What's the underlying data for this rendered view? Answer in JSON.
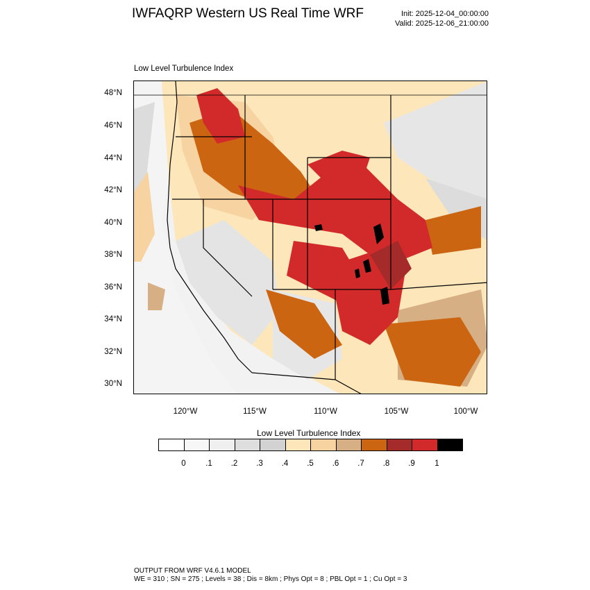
{
  "title": "IWFAQRP Western US Real Time WRF",
  "init": "Init: 2025-12-04_00:00:00",
  "valid": "Valid: 2025-12-06_21:00:00",
  "plot_label": "Low Level Turbulence Index",
  "lat_labels": [
    "48°N",
    "46°N",
    "44°N",
    "42°N",
    "40°N",
    "38°N",
    "36°N",
    "34°N",
    "32°N",
    "30°N"
  ],
  "lon_labels": [
    "120°W",
    "115°W",
    "110°W",
    "105°W",
    "100°W"
  ],
  "colorbar": {
    "title": "Low Level Turbulence Index",
    "colors": [
      "#ffffff",
      "#f7f7f7",
      "#efefef",
      "#dedede",
      "#d2d2d2",
      "#fde7ba",
      "#f6d3a1",
      "#d6b084",
      "#cc6512",
      "#a52a2a",
      "#d22a2a",
      "#000000"
    ],
    "ticks": [
      "0",
      ".1",
      ".2",
      ".3",
      ".4",
      ".5",
      ".6",
      ".7",
      ".8",
      ".9",
      "1"
    ]
  },
  "footer": {
    "line1": "OUTPUT FROM WRF V4.6.1 MODEL",
    "line2": "WE = 310 ; SN = 275 ; Levels = 38 ; Dis = 8km ; Phys Opt = 8 ; PBL Opt = 1 ; Cu Opt = 3"
  }
}
